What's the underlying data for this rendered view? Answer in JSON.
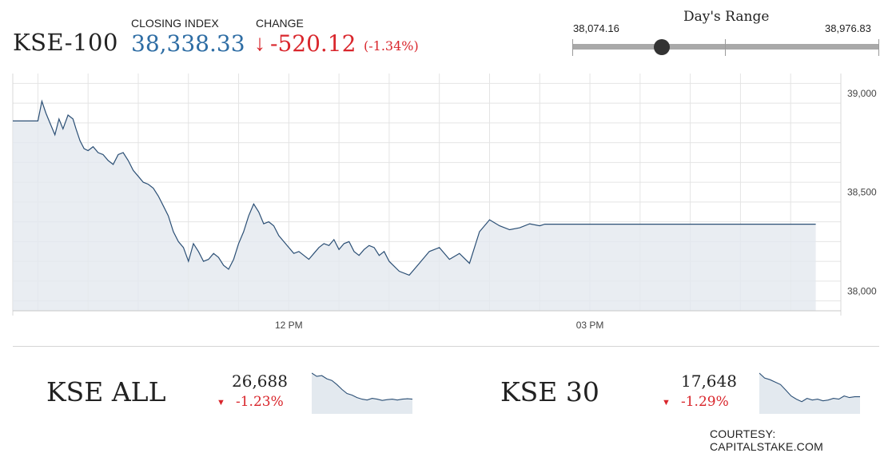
{
  "header": {
    "index_name": "KSE-100",
    "closing_label": "CLOSING INDEX",
    "closing_value": "38,338.33",
    "change_label": "CHANGE",
    "change_arrow": "↓",
    "change_value": "-520.12",
    "change_pct": "(-1.34%)"
  },
  "day_range": {
    "title": "Day's Range",
    "low": "38,074.16",
    "high": "38,976.83",
    "low_value": 38074.16,
    "high_value": 38976.83,
    "current_value": 38338.33
  },
  "colors": {
    "line": "#2b4f75",
    "fill": "#e3e9ef",
    "up_blue": "#2e6da4",
    "down_red": "#d9262c"
  },
  "chart_data": [
    {
      "type": "area",
      "name": "KSE-100 intraday",
      "ylim": [
        37900,
        39100
      ],
      "y_ticks": [
        {
          "value": 39000,
          "label": "39,000"
        },
        {
          "value": 38500,
          "label": "38,500"
        },
        {
          "value": 38000,
          "label": "38,000"
        }
      ],
      "x_range": [
        9.25,
        17.5
      ],
      "x_ticks": [
        {
          "value": 12,
          "label": "12 PM"
        },
        {
          "value": 15,
          "label": "03 PM"
        }
      ],
      "grid": true,
      "x": [
        9.25,
        9.5,
        9.54,
        9.58,
        9.62,
        9.67,
        9.71,
        9.75,
        9.8,
        9.85,
        9.88,
        9.92,
        9.96,
        10.0,
        10.05,
        10.1,
        10.15,
        10.2,
        10.25,
        10.3,
        10.35,
        10.4,
        10.45,
        10.5,
        10.55,
        10.6,
        10.65,
        10.7,
        10.75,
        10.8,
        10.85,
        10.9,
        10.95,
        11.0,
        11.05,
        11.1,
        11.15,
        11.2,
        11.25,
        11.3,
        11.35,
        11.4,
        11.45,
        11.5,
        11.55,
        11.6,
        11.65,
        11.7,
        11.75,
        11.8,
        11.85,
        11.9,
        11.95,
        12.0,
        12.05,
        12.1,
        12.15,
        12.2,
        12.25,
        12.3,
        12.35,
        12.4,
        12.45,
        12.5,
        12.55,
        12.6,
        12.65,
        12.7,
        12.75,
        12.8,
        12.85,
        12.9,
        12.95,
        13.0,
        13.1,
        13.2,
        13.3,
        13.4,
        13.5,
        13.6,
        13.7,
        13.8,
        13.9,
        14.0,
        14.1,
        14.2,
        14.3,
        14.4,
        14.5,
        14.55,
        14.6,
        14.65,
        14.7,
        14.75,
        14.8,
        14.85,
        14.9,
        14.95,
        15.0,
        15.05,
        15.1,
        15.15,
        15.2,
        15.25,
        15.3,
        15.35,
        15.4,
        15.45,
        15.5,
        15.55,
        15.6,
        17.25
      ],
      "values": [
        38860,
        38860,
        38960,
        38900,
        38850,
        38790,
        38870,
        38820,
        38890,
        38870,
        38820,
        38760,
        38720,
        38710,
        38730,
        38700,
        38690,
        38660,
        38640,
        38690,
        38700,
        38660,
        38610,
        38580,
        38550,
        38540,
        38520,
        38480,
        38430,
        38380,
        38300,
        38250,
        38220,
        38150,
        38240,
        38200,
        38150,
        38160,
        38190,
        38170,
        38130,
        38110,
        38160,
        38240,
        38300,
        38380,
        38440,
        38400,
        38340,
        38350,
        38330,
        38280,
        38250,
        38220,
        38190,
        38200,
        38180,
        38160,
        38190,
        38220,
        38240,
        38230,
        38260,
        38210,
        38240,
        38250,
        38200,
        38180,
        38210,
        38230,
        38220,
        38180,
        38200,
        38150,
        38100,
        38080,
        38140,
        38200,
        38220,
        38160,
        38190,
        38140,
        38300,
        38360,
        38330,
        38310,
        38320,
        38340,
        38330,
        38338,
        38338,
        38338,
        38338,
        38338,
        38338,
        38338,
        38338,
        38338,
        38338,
        38338,
        38338,
        38338,
        38338,
        38338,
        38338,
        38338,
        38338,
        38338,
        38338,
        38338,
        38338,
        38338
      ]
    },
    {
      "type": "area",
      "name": "KSE ALL",
      "values": [
        100,
        92,
        94,
        86,
        82,
        72,
        60,
        50,
        46,
        40,
        36,
        34,
        38,
        36,
        33,
        35,
        36,
        34,
        36,
        37,
        36
      ]
    },
    {
      "type": "area",
      "name": "KSE 30",
      "values": [
        100,
        88,
        84,
        78,
        72,
        58,
        44,
        36,
        30,
        38,
        34,
        36,
        32,
        34,
        38,
        36,
        44,
        40,
        42,
        42
      ]
    }
  ],
  "mini": [
    {
      "name": "KSE ALL",
      "value": "26,688",
      "change": "-1.23%"
    },
    {
      "name": "KSE 30",
      "value": "17,648",
      "change": "-1.29%"
    }
  ],
  "footer": {
    "courtesy": "COURTESY: CAPITALSTAKE.COM"
  }
}
